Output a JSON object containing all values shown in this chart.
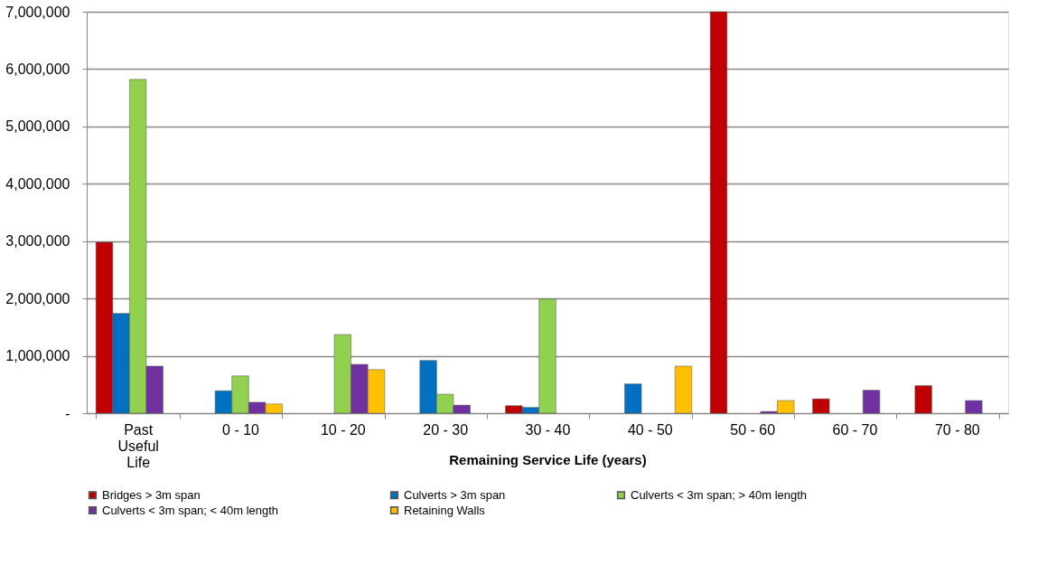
{
  "chart_data": {
    "type": "bar",
    "xlabel": "Remaining Service Life (years)",
    "categories": [
      "Past Useful Life",
      "0 - 10",
      "10 - 20",
      "20 - 30",
      "30 - 40",
      "40 - 50",
      "50 - 60",
      "60 - 70",
      "70 - 80"
    ],
    "series": [
      {
        "name": "Bridges > 3m span",
        "color": "#c00000",
        "values": [
          2980000,
          null,
          null,
          null,
          130000,
          null,
          7000000,
          250000,
          480000
        ]
      },
      {
        "name": "Culverts > 3m span",
        "color": "#0070c0",
        "values": [
          1740000,
          390000,
          null,
          920000,
          100000,
          510000,
          null,
          null,
          null
        ]
      },
      {
        "name": "Culverts < 3m span; > 40m length",
        "color": "#92d050",
        "values": [
          5820000,
          650000,
          1370000,
          330000,
          1990000,
          null,
          null,
          null,
          null
        ]
      },
      {
        "name": "Culverts < 3m span; < 40m length",
        "color": "#7030a0",
        "values": [
          820000,
          190000,
          850000,
          140000,
          null,
          null,
          30000,
          400000,
          220000
        ]
      },
      {
        "name": "Retaining Walls",
        "color": "#ffc000",
        "values": [
          null,
          160000,
          760000,
          null,
          null,
          820000,
          220000,
          null,
          null
        ]
      }
    ],
    "ylim": [
      0,
      7000000
    ],
    "yticks": [
      {
        "value": 0,
        "label": "-"
      },
      {
        "value": 1000000,
        "label": "1,000,000"
      },
      {
        "value": 2000000,
        "label": "2,000,000"
      },
      {
        "value": 3000000,
        "label": "3,000,000"
      },
      {
        "value": 4000000,
        "label": "4,000,000"
      },
      {
        "value": 5000000,
        "label": "5,000,000"
      },
      {
        "value": 6000000,
        "label": "6,000,000"
      },
      {
        "value": 7000000,
        "label": "7,000,000"
      }
    ],
    "grid": "y",
    "legend": "bottom"
  }
}
